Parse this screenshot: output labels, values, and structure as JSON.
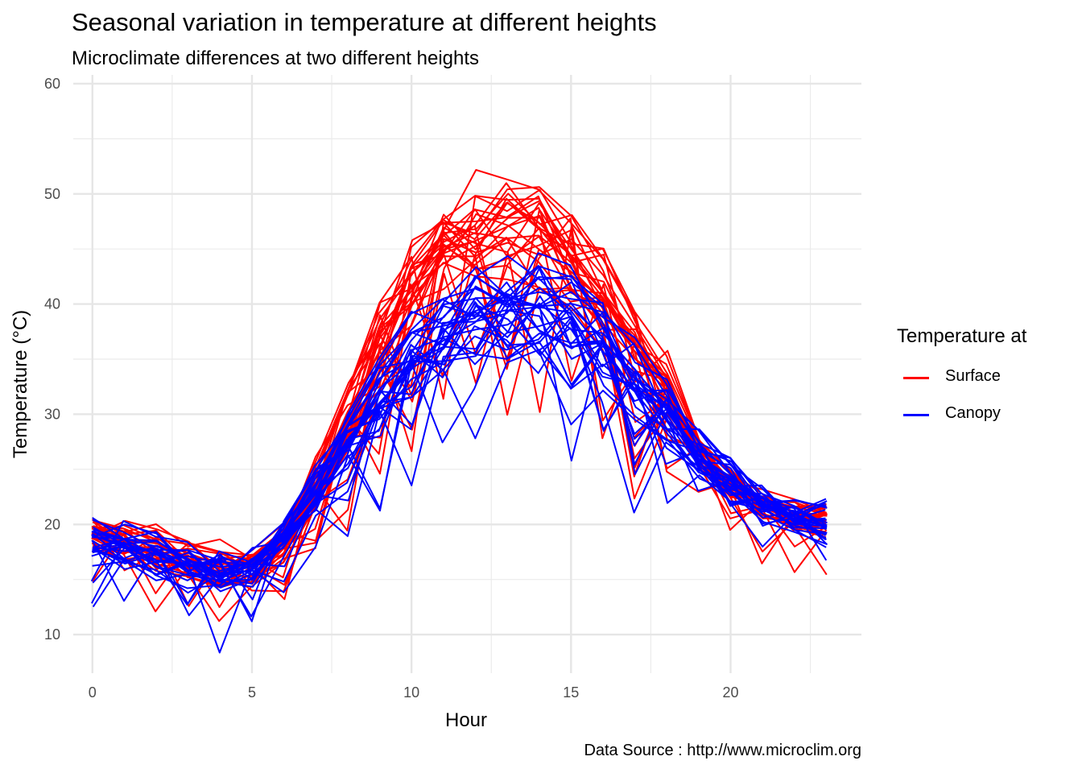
{
  "chart_data": {
    "type": "line",
    "title": "Seasonal variation in temperature at different heights",
    "subtitle": "Microclimate differences at two different heights",
    "caption": "Data Source : http://www.microclim.org",
    "xlabel": "Hour",
    "ylabel": "Temperature (°C)",
    "xlim": [
      -0.6,
      24.1
    ],
    "ylim": [
      6.5,
      60.8
    ],
    "x_ticks": [
      0,
      5,
      10,
      15,
      20
    ],
    "y_ticks": [
      10,
      20,
      30,
      40,
      50,
      60
    ],
    "grid": true,
    "legend": {
      "title": "Temperature at",
      "position": "right",
      "entries": [
        {
          "label": "Surface",
          "color": "#ff0000"
        },
        {
          "label": "Canopy",
          "color": "#0000ff"
        }
      ]
    },
    "hours": [
      0,
      1,
      2,
      3,
      4,
      5,
      6,
      7,
      8,
      9,
      10,
      11,
      12,
      13,
      14,
      15,
      16,
      17,
      18,
      19,
      20,
      21,
      22,
      23
    ],
    "series": [
      {
        "name": "Surface",
        "color": "#ff0000",
        "mean": [
          19.2,
          18.5,
          17.8,
          16.8,
          16.2,
          16.0,
          18.5,
          23.5,
          30.0,
          36.5,
          42.0,
          45.5,
          47.0,
          47.5,
          46.5,
          44.5,
          40.5,
          36.5,
          32.5,
          27.0,
          24.0,
          22.0,
          21.0,
          20.5
        ],
        "spread": [
          2.5,
          2.5,
          3.0,
          3.0,
          3.0,
          2.5,
          2.5,
          3.5,
          5.0,
          6.0,
          7.0,
          7.0,
          7.0,
          7.5,
          7.5,
          7.0,
          6.5,
          5.5,
          4.5,
          3.0,
          2.5,
          2.5,
          2.5,
          2.5
        ]
      },
      {
        "name": "Canopy",
        "color": "#0000ff",
        "mean": [
          18.6,
          18.0,
          17.2,
          16.2,
          15.8,
          16.2,
          19.0,
          23.0,
          27.5,
          31.5,
          35.0,
          37.5,
          39.0,
          39.5,
          39.0,
          38.0,
          36.0,
          33.5,
          30.5,
          26.5,
          23.8,
          22.0,
          21.0,
          20.2
        ],
        "spread": [
          3.0,
          3.0,
          3.0,
          3.0,
          3.5,
          3.0,
          2.0,
          3.0,
          4.0,
          5.0,
          5.5,
          6.0,
          6.5,
          7.0,
          7.5,
          7.5,
          7.0,
          5.5,
          4.5,
          3.5,
          3.0,
          2.5,
          2.5,
          3.0
        ]
      }
    ],
    "lines_per_series": 30
  }
}
